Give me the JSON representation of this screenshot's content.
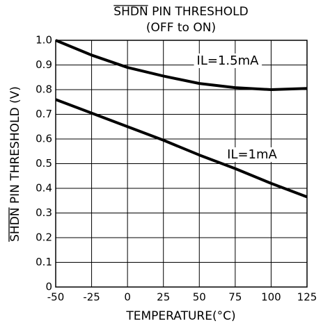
{
  "chart_data": {
    "type": "line",
    "title": "SHDN PIN THRESHOLD",
    "subtitle": "(OFF to ON)",
    "xlabel": "TEMPERATURE(°C)",
    "ylabel": "SHDN PIN THRESHOLD (V)",
    "x": [
      -50,
      -25,
      0,
      25,
      50,
      75,
      100,
      125
    ],
    "series": [
      {
        "name": "IL=1.5mA",
        "color": "#000000",
        "values": [
          1.0,
          0.94,
          0.89,
          0.855,
          0.825,
          0.808,
          0.8,
          0.805
        ]
      },
      {
        "name": "IL=1mA",
        "color": "#000000",
        "values": [
          0.76,
          0.705,
          0.65,
          0.595,
          0.535,
          0.48,
          0.42,
          0.365
        ]
      }
    ],
    "xlim": [
      -50,
      125
    ],
    "xticks": [
      -50,
      -25,
      0,
      25,
      50,
      75,
      100,
      125
    ],
    "ylim": [
      0,
      1
    ],
    "yticks": [
      0,
      0.1,
      0.2,
      0.3,
      0.4,
      0.5,
      0.6,
      0.7,
      0.8,
      0.9,
      {
        "value": 1,
        "label": "1.0"
      }
    ],
    "grid": true
  }
}
